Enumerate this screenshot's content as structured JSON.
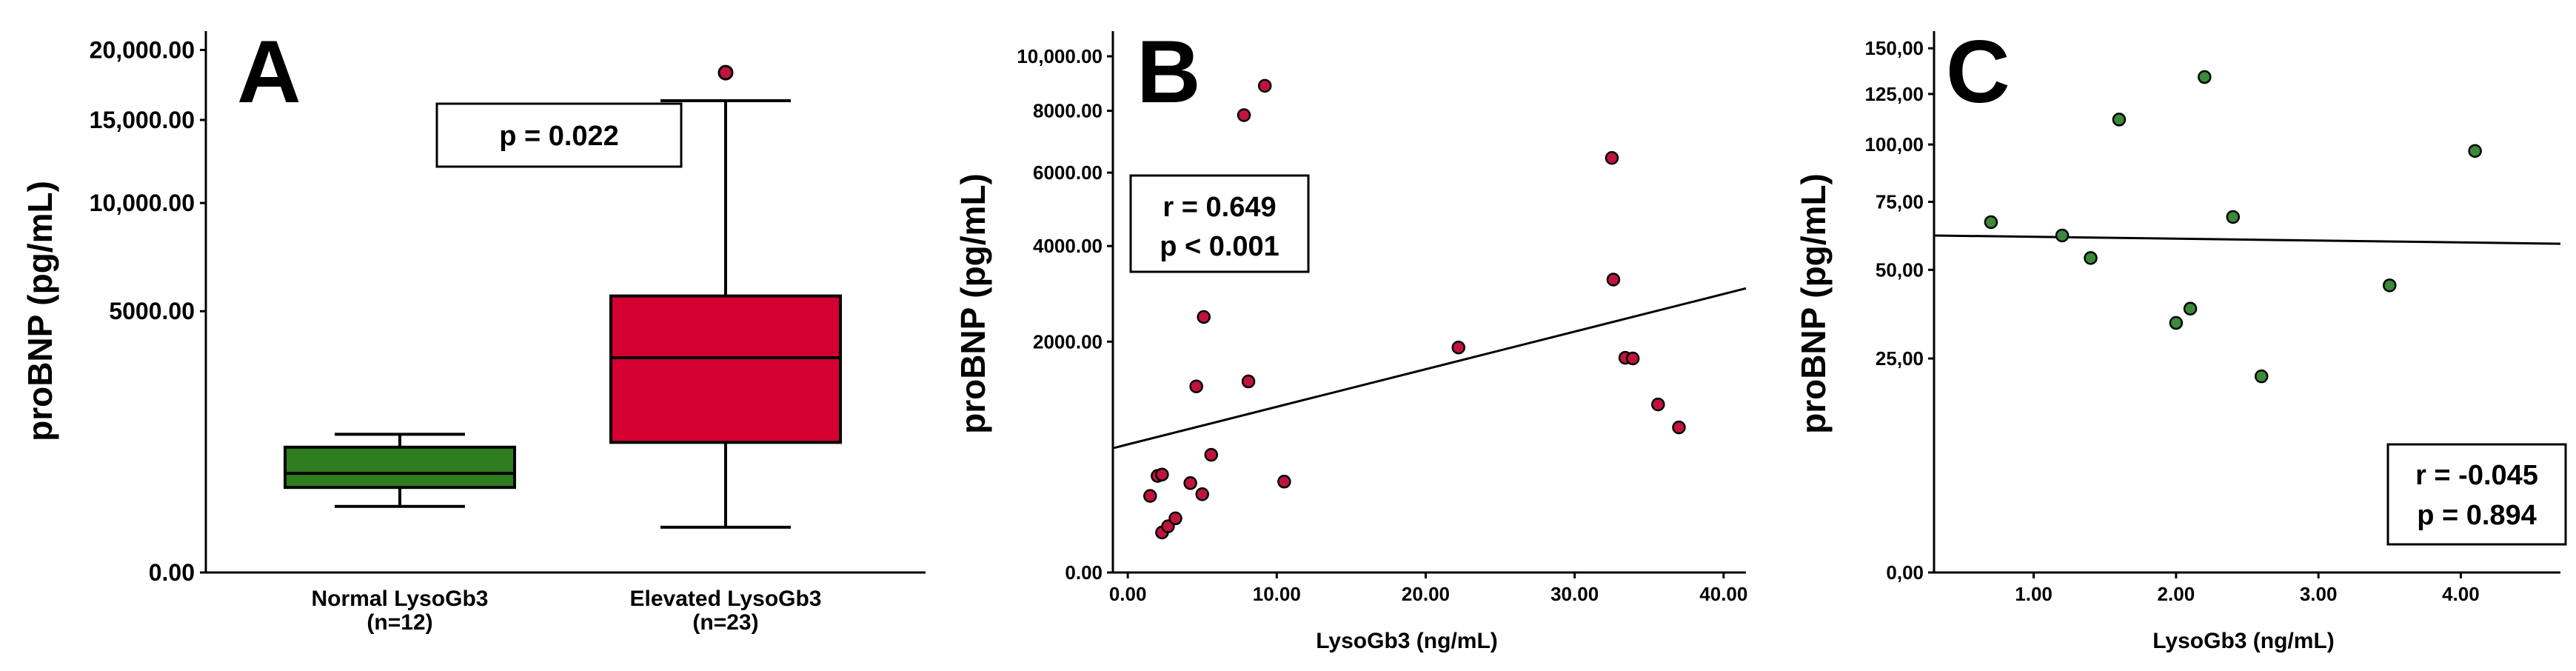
{
  "chart_data": [
    {
      "panel": "A",
      "type": "box",
      "ylabel": "proBNP (pg/mL)",
      "y_scale": "sqrt",
      "yticks": [
        0,
        5000,
        10000,
        15000,
        20000
      ],
      "ytick_labels": [
        "0.00",
        "5000.00",
        "10,000.00",
        "15,000.00",
        "20,000.00"
      ],
      "categories": [
        "Normal LysoGb3",
        "Elevated LysoGb3"
      ],
      "category_n": [
        "(n=12)",
        "(n=23)"
      ],
      "boxes": [
        {
          "name": "Normal LysoGb3",
          "whisker_low": 320,
          "q1": 530,
          "median": 720,
          "q3": 1150,
          "whisker_high": 1400,
          "outliers": [],
          "color": "#2e7d1f"
        },
        {
          "name": "Elevated LysoGb3",
          "whisker_low": 150,
          "q1": 1240,
          "median": 3380,
          "q3": 5600,
          "whisker_high": 16300,
          "outliers": [
            18300
          ],
          "color": "#d50032"
        }
      ],
      "annotation": "p = 0.022"
    },
    {
      "panel": "B",
      "type": "scatter",
      "xlabel": "LysoGb3 (ng/mL)",
      "ylabel": "proBNP (pg/mL)",
      "y_scale": "sqrt",
      "xlim": [
        -1,
        41.5
      ],
      "xticks": [
        0,
        10,
        20,
        30,
        40
      ],
      "xtick_labels": [
        "0.00",
        "10.00",
        "20.00",
        "30.00",
        "40.00"
      ],
      "yticks": [
        0,
        2000,
        4000,
        6000,
        8000,
        10000
      ],
      "ytick_labels": [
        "0.00",
        "2000.00",
        "4000.00",
        "6000.00",
        "8000.00",
        "10,000.00"
      ],
      "point_color": "#c0143c",
      "points": [
        [
          1.5,
          220
        ],
        [
          2.0,
          350
        ],
        [
          2.3,
          360
        ],
        [
          2.3,
          60
        ],
        [
          2.7,
          80
        ],
        [
          3.2,
          110
        ],
        [
          4.2,
          300
        ],
        [
          4.6,
          1300
        ],
        [
          5.0,
          230
        ],
        [
          5.1,
          2450
        ],
        [
          5.6,
          520
        ],
        [
          7.8,
          7850
        ],
        [
          8.1,
          1370
        ],
        [
          9.2,
          8890
        ],
        [
          10.5,
          310
        ],
        [
          22.2,
          1900
        ],
        [
          32.5,
          6450
        ],
        [
          32.6,
          3220
        ],
        [
          33.4,
          1730
        ],
        [
          33.9,
          1720
        ],
        [
          35.6,
          1060
        ],
        [
          37.0,
          790
        ]
      ],
      "fit_line": {
        "x": [
          -1,
          41.5
        ],
        "y": [
          580,
          3030
        ]
      },
      "stats": [
        "r = 0.649",
        "p < 0.001"
      ]
    },
    {
      "panel": "C",
      "type": "scatter",
      "xlabel": "LysoGb3 (ng/mL)",
      "ylabel": "proBNP (pg/mL)",
      "y_scale": "sqrt",
      "xlim": [
        0.3,
        4.7
      ],
      "xticks": [
        1,
        2,
        3,
        4
      ],
      "xtick_labels": [
        "1.00",
        "2.00",
        "3.00",
        "4.00"
      ],
      "yticks": [
        0,
        25,
        50,
        75,
        100,
        125,
        150
      ],
      "ytick_labels": [
        "0,00",
        "25,00",
        "50,00",
        "75,00",
        "100,00",
        "125,00",
        "150,00"
      ],
      "point_color": "#3a8a3a",
      "points": [
        [
          0.7,
          67
        ],
        [
          1.2,
          62
        ],
        [
          1.4,
          54
        ],
        [
          1.6,
          112
        ],
        [
          2.0,
          34
        ],
        [
          2.1,
          38
        ],
        [
          2.2,
          134
        ],
        [
          2.4,
          69
        ],
        [
          2.6,
          21
        ],
        [
          3.5,
          45
        ],
        [
          4.1,
          97
        ]
      ],
      "fit_line": {
        "x": [
          0.3,
          4.7
        ],
        "y": [
          62,
          59
        ]
      },
      "stats": [
        "r = -0.045",
        "p = 0.894"
      ]
    }
  ]
}
